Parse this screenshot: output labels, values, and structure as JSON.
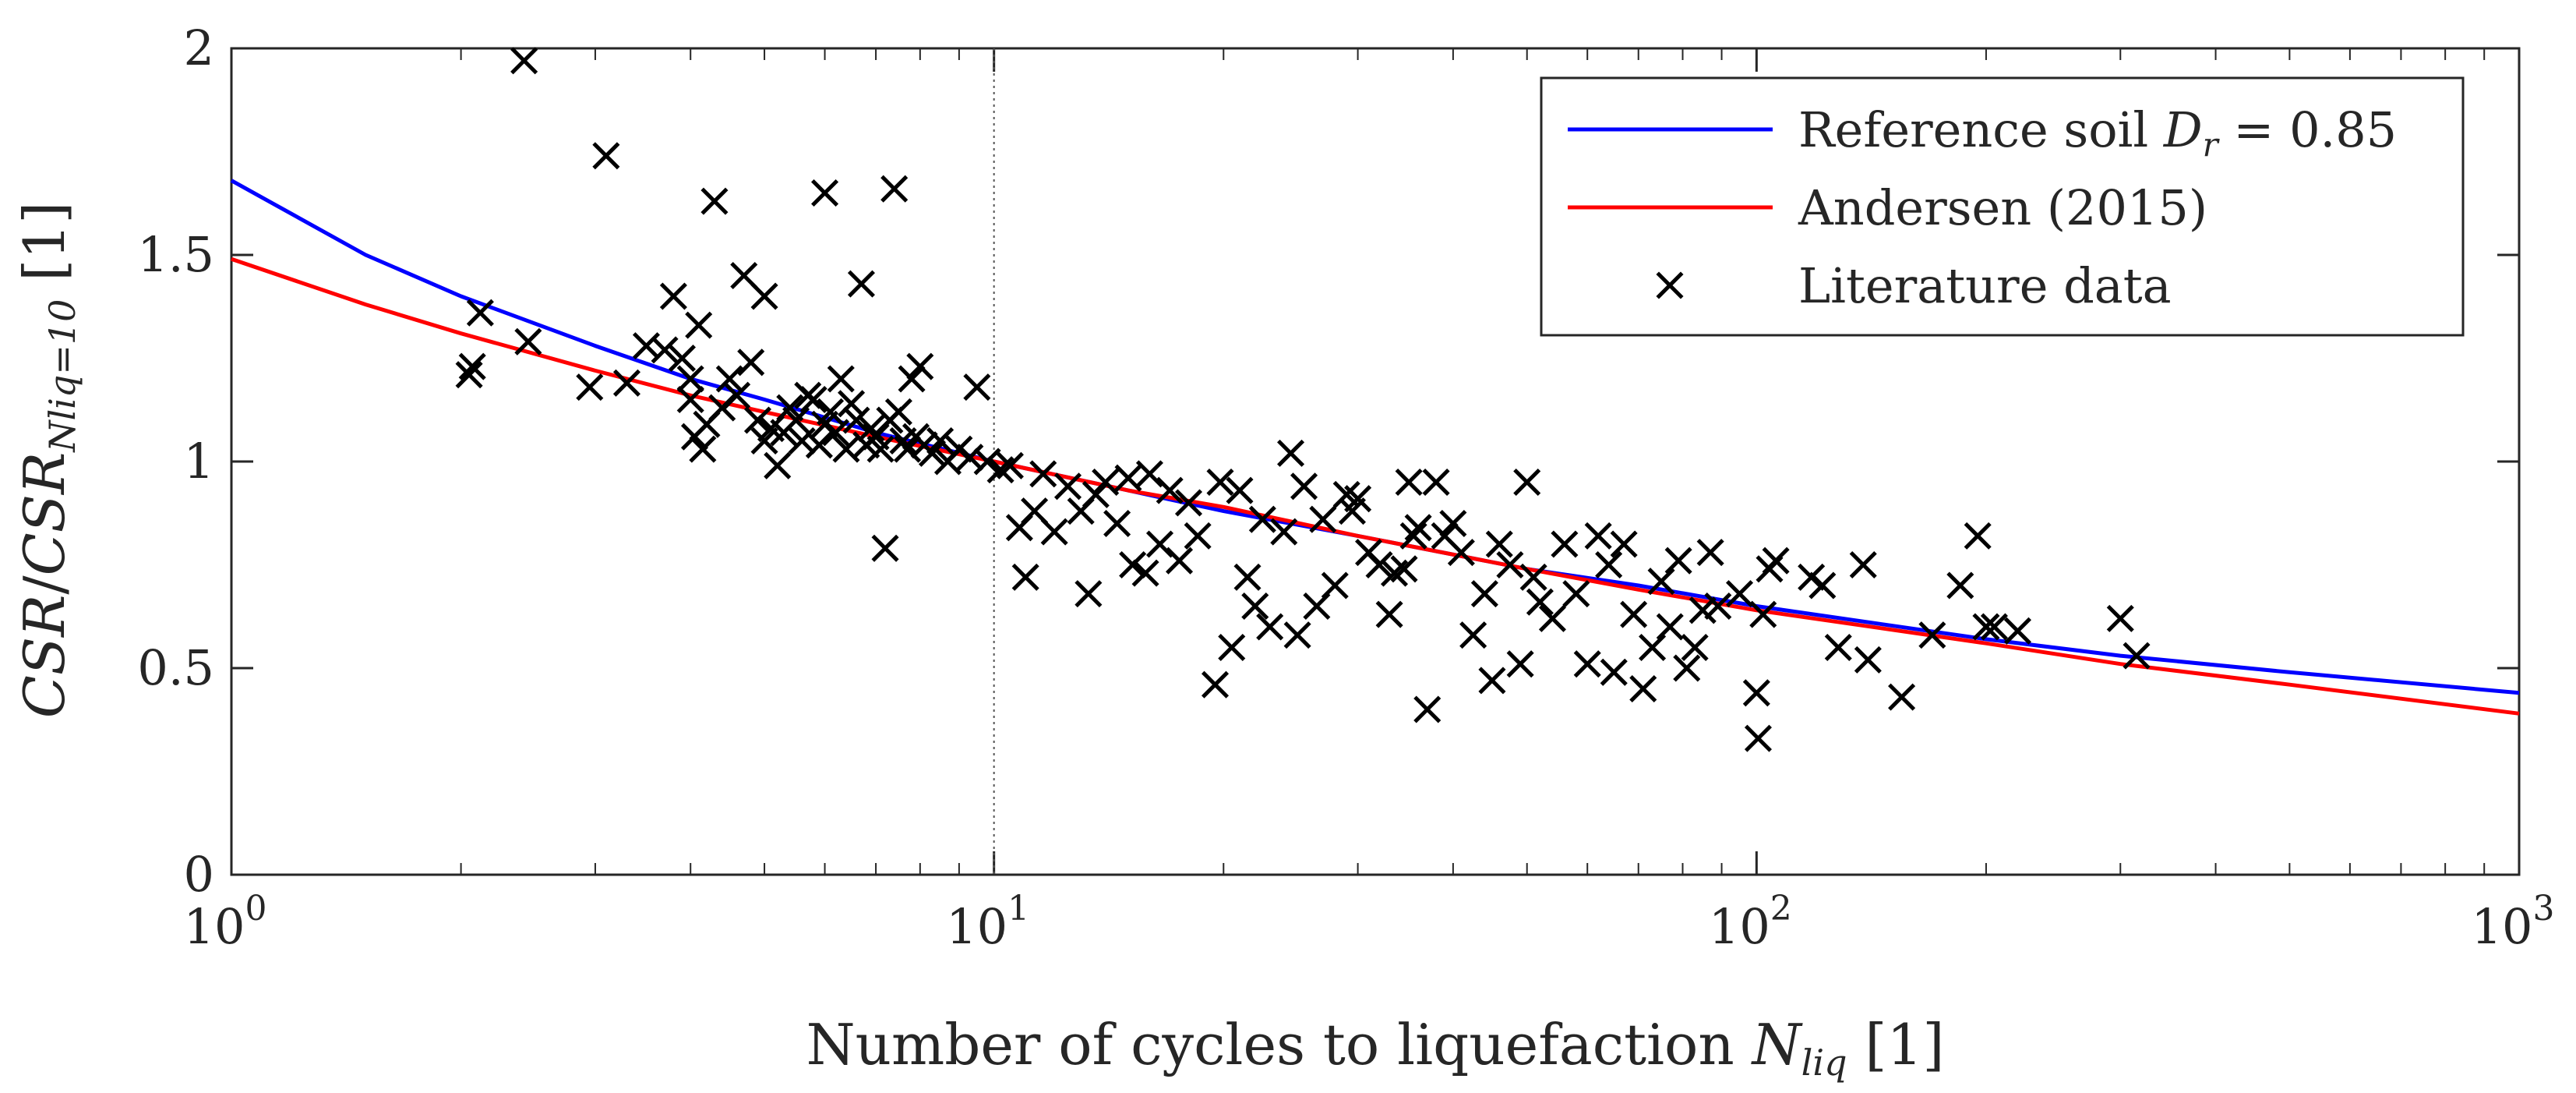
{
  "chart_data": {
    "type": "scatter",
    "x_scale": "log",
    "xlim": [
      1,
      1000
    ],
    "ylim": [
      0,
      2
    ],
    "grid": false,
    "legend_position": "top-right",
    "xlabel": {
      "text": "Number of cycles to liquefaction ",
      "var": "N",
      "sub": "liq",
      "unit": " [1]"
    },
    "ylabel": {
      "a": "CSR",
      "slash": "/",
      "b": "CSR",
      "sub": "Nliq=10",
      "unit": " [1]"
    },
    "x_ticks": [
      {
        "value": 1,
        "base": "10",
        "exp": "0"
      },
      {
        "value": 10,
        "base": "10",
        "exp": "1"
      },
      {
        "value": 100,
        "base": "10",
        "exp": "2"
      },
      {
        "value": 1000,
        "base": "10",
        "exp": "3"
      }
    ],
    "y_ticks": [
      {
        "value": 0,
        "label": "0"
      },
      {
        "value": 0.5,
        "label": "0.5"
      },
      {
        "value": 1,
        "label": "1"
      },
      {
        "value": 1.5,
        "label": "1.5"
      },
      {
        "value": 2,
        "label": "2"
      }
    ],
    "reference_line_x": 10,
    "legend": [
      {
        "key": "reference",
        "label": "Reference soil ",
        "math": "D",
        "math_sub": "r",
        "math_tail": " = 0.85",
        "color": "#0000ff",
        "marker": "line"
      },
      {
        "key": "andersen",
        "label": "Andersen (2015)",
        "color": "#ff0000",
        "marker": "line"
      },
      {
        "key": "literature",
        "label": "Literature data",
        "color": "#000000",
        "marker": "x"
      }
    ],
    "series": [
      {
        "name": "Reference soil Dr = 0.85",
        "color": "#0000ff",
        "x": [
          1,
          1.5,
          2,
          3,
          4,
          5,
          7,
          10,
          15,
          20,
          30,
          50,
          70,
          100,
          200,
          300,
          500,
          1000
        ],
        "y": [
          1.68,
          1.5,
          1.4,
          1.28,
          1.2,
          1.15,
          1.07,
          1.0,
          0.93,
          0.88,
          0.82,
          0.74,
          0.7,
          0.65,
          0.57,
          0.53,
          0.49,
          0.44
        ]
      },
      {
        "name": "Andersen (2015)",
        "color": "#ff0000",
        "x": [
          1,
          1.5,
          2,
          3,
          4,
          5,
          7,
          10,
          15,
          20,
          30,
          50,
          70,
          100,
          200,
          300,
          500,
          1000
        ],
        "y": [
          1.49,
          1.38,
          1.31,
          1.22,
          1.16,
          1.12,
          1.06,
          1.0,
          0.93,
          0.89,
          0.82,
          0.74,
          0.69,
          0.64,
          0.56,
          0.51,
          0.46,
          0.39
        ]
      },
      {
        "name": "Literature data",
        "color": "#000000",
        "points": [
          [
            2.05,
            1.21
          ],
          [
            2.07,
            1.23
          ],
          [
            2.12,
            1.36
          ],
          [
            2.42,
            1.97
          ],
          [
            2.45,
            1.29
          ],
          [
            2.95,
            1.18
          ],
          [
            3.1,
            1.74
          ],
          [
            3.3,
            1.19
          ],
          [
            3.5,
            1.28
          ],
          [
            3.7,
            1.27
          ],
          [
            3.8,
            1.4
          ],
          [
            3.9,
            1.25
          ],
          [
            4.0,
            1.2
          ],
          [
            4.0,
            1.15
          ],
          [
            4.05,
            1.06
          ],
          [
            4.1,
            1.33
          ],
          [
            4.15,
            1.03
          ],
          [
            4.2,
            1.09
          ],
          [
            4.3,
            1.63
          ],
          [
            4.4,
            1.13
          ],
          [
            4.5,
            1.2
          ],
          [
            4.6,
            1.16
          ],
          [
            4.7,
            1.45
          ],
          [
            4.8,
            1.24
          ],
          [
            4.9,
            1.1
          ],
          [
            5.0,
            1.05
          ],
          [
            5.0,
            1.4
          ],
          [
            5.1,
            1.08
          ],
          [
            5.2,
            0.99
          ],
          [
            5.3,
            1.07
          ],
          [
            5.4,
            1.13
          ],
          [
            5.5,
            1.1
          ],
          [
            5.6,
            1.05
          ],
          [
            5.7,
            1.16
          ],
          [
            5.8,
            1.15
          ],
          [
            5.9,
            1.04
          ],
          [
            6.0,
            1.65
          ],
          [
            6.0,
            1.09
          ],
          [
            6.1,
            1.12
          ],
          [
            6.2,
            1.07
          ],
          [
            6.3,
            1.2
          ],
          [
            6.4,
            1.03
          ],
          [
            6.5,
            1.14
          ],
          [
            6.6,
            1.1
          ],
          [
            6.7,
            1.43
          ],
          [
            6.8,
            1.04
          ],
          [
            6.9,
            1.08
          ],
          [
            7.0,
            1.06
          ],
          [
            7.1,
            1.03
          ],
          [
            7.2,
            0.79
          ],
          [
            7.3,
            1.1
          ],
          [
            7.4,
            1.66
          ],
          [
            7.5,
            1.12
          ],
          [
            7.6,
            1.05
          ],
          [
            7.7,
            1.03
          ],
          [
            7.8,
            1.2
          ],
          [
            7.9,
            1.06
          ],
          [
            8.0,
            1.23
          ],
          [
            8.1,
            1.04
          ],
          [
            8.3,
            1.02
          ],
          [
            8.5,
            1.05
          ],
          [
            8.7,
            1.0
          ],
          [
            9.0,
            1.03
          ],
          [
            9.3,
            1.01
          ],
          [
            9.5,
            1.18
          ],
          [
            9.8,
            1.0
          ],
          [
            10.2,
            0.98
          ],
          [
            10.5,
            0.99
          ],
          [
            10.8,
            0.84
          ],
          [
            11.0,
            0.72
          ],
          [
            11.3,
            0.88
          ],
          [
            11.6,
            0.97
          ],
          [
            12.0,
            0.83
          ],
          [
            12.5,
            0.94
          ],
          [
            13.0,
            0.88
          ],
          [
            13.3,
            0.68
          ],
          [
            13.6,
            0.92
          ],
          [
            14.0,
            0.95
          ],
          [
            14.5,
            0.85
          ],
          [
            15.0,
            0.96
          ],
          [
            15.2,
            0.75
          ],
          [
            15.8,
            0.73
          ],
          [
            16.0,
            0.97
          ],
          [
            16.5,
            0.8
          ],
          [
            17.0,
            0.93
          ],
          [
            17.5,
            0.76
          ],
          [
            18.0,
            0.9
          ],
          [
            18.5,
            0.82
          ],
          [
            19.5,
            0.46
          ],
          [
            19.8,
            0.95
          ],
          [
            20.5,
            0.55
          ],
          [
            21.0,
            0.93
          ],
          [
            21.5,
            0.72
          ],
          [
            22.0,
            0.65
          ],
          [
            22.5,
            0.86
          ],
          [
            23.0,
            0.6
          ],
          [
            24.0,
            0.83
          ],
          [
            24.5,
            1.02
          ],
          [
            25.0,
            0.58
          ],
          [
            25.5,
            0.94
          ],
          [
            26.5,
            0.65
          ],
          [
            27.0,
            0.86
          ],
          [
            28.0,
            0.7
          ],
          [
            29.0,
            0.92
          ],
          [
            29.5,
            0.88
          ],
          [
            30.0,
            0.91
          ],
          [
            31.0,
            0.78
          ],
          [
            32.0,
            0.75
          ],
          [
            33.0,
            0.63
          ],
          [
            33.5,
            0.73
          ],
          [
            34.5,
            0.74
          ],
          [
            35.0,
            0.95
          ],
          [
            35.5,
            0.82
          ],
          [
            36.0,
            0.84
          ],
          [
            37.0,
            0.4
          ],
          [
            38.0,
            0.95
          ],
          [
            39.0,
            0.82
          ],
          [
            40.0,
            0.85
          ],
          [
            41.0,
            0.78
          ],
          [
            42.5,
            0.58
          ],
          [
            44.0,
            0.68
          ],
          [
            45.0,
            0.47
          ],
          [
            46.0,
            0.8
          ],
          [
            47.5,
            0.75
          ],
          [
            49.0,
            0.51
          ],
          [
            50.0,
            0.95
          ],
          [
            51.0,
            0.72
          ],
          [
            52.0,
            0.66
          ],
          [
            54.0,
            0.62
          ],
          [
            56.0,
            0.8
          ],
          [
            58.0,
            0.68
          ],
          [
            60.0,
            0.51
          ],
          [
            62.0,
            0.82
          ],
          [
            64.0,
            0.75
          ],
          [
            65.0,
            0.49
          ],
          [
            67.0,
            0.8
          ],
          [
            69.0,
            0.63
          ],
          [
            71.0,
            0.45
          ],
          [
            73.0,
            0.55
          ],
          [
            75.0,
            0.71
          ],
          [
            77.0,
            0.6
          ],
          [
            79.0,
            0.76
          ],
          [
            81.0,
            0.5
          ],
          [
            83.0,
            0.55
          ],
          [
            85.0,
            0.64
          ],
          [
            87.0,
            0.78
          ],
          [
            89.0,
            0.65
          ],
          [
            95.0,
            0.68
          ],
          [
            100.0,
            0.44
          ],
          [
            100.5,
            0.33
          ],
          [
            102.0,
            0.63
          ],
          [
            104.0,
            0.74
          ],
          [
            106.0,
            0.76
          ],
          [
            118.0,
            0.72
          ],
          [
            122.0,
            0.7
          ],
          [
            128.0,
            0.55
          ],
          [
            138.0,
            0.75
          ],
          [
            140.0,
            0.52
          ],
          [
            155.0,
            0.43
          ],
          [
            170.0,
            0.58
          ],
          [
            185.0,
            0.7
          ],
          [
            195.0,
            0.82
          ],
          [
            200.0,
            0.6
          ],
          [
            205.0,
            0.6
          ],
          [
            220.0,
            0.59
          ],
          [
            300.0,
            0.62
          ],
          [
            315.0,
            0.53
          ]
        ]
      }
    ]
  }
}
